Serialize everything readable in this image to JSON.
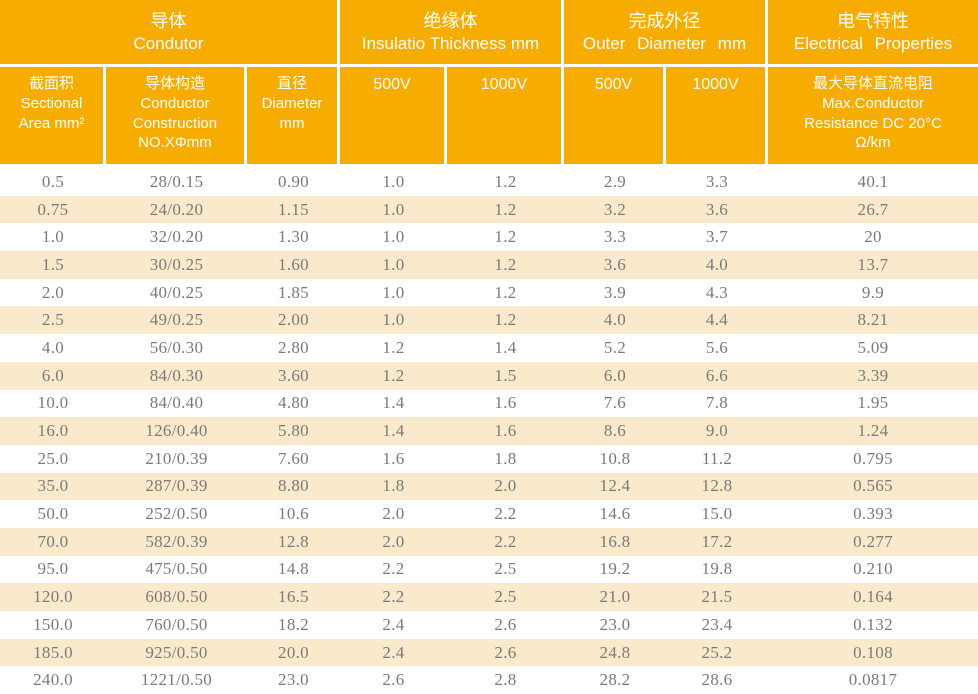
{
  "table": {
    "colors": {
      "header_bg": "#F6AC00",
      "stripe_bg": "#FBE9CB",
      "header_text": "#FFFFFF",
      "data_text": "#7A7A7A"
    },
    "group_headers": [
      {
        "zh": "导体",
        "en": "Condutor"
      },
      {
        "zh": "绝缘体",
        "en": "Insulatio Thickness  mm"
      },
      {
        "zh": "完成外径",
        "en": "Outer  Diameter  mm"
      },
      {
        "zh": "电气特性",
        "en": "Electrical  Properties"
      }
    ],
    "sub_headers": [
      "截面积\nSectional\nArea mm²",
      "导体构造\nConductor\nConstruction\nNO.XΦmm",
      "直径\nDiameter\nmm",
      "500V",
      "1000V",
      "500V",
      "1000V",
      "最大导体直流电阻\nMax.Conductor\nResistance DC 20°C\nΩ/km"
    ],
    "rows": [
      [
        "0.5",
        "28/0.15",
        "0.90",
        "1.0",
        "1.2",
        "2.9",
        "3.3",
        "40.1"
      ],
      [
        "0.75",
        "24/0.20",
        "1.15",
        "1.0",
        "1.2",
        "3.2",
        "3.6",
        "26.7"
      ],
      [
        "1.0",
        "32/0.20",
        "1.30",
        "1.0",
        "1.2",
        "3.3",
        "3.7",
        "20"
      ],
      [
        "1.5",
        "30/0.25",
        "1.60",
        "1.0",
        "1.2",
        "3.6",
        "4.0",
        "13.7"
      ],
      [
        "2.0",
        "40/0.25",
        "1.85",
        "1.0",
        "1.2",
        "3.9",
        "4.3",
        "9.9"
      ],
      [
        "2.5",
        "49/0.25",
        "2.00",
        "1.0",
        "1.2",
        "4.0",
        "4.4",
        "8.21"
      ],
      [
        "4.0",
        "56/0.30",
        "2.80",
        "1.2",
        "1.4",
        "5.2",
        "5.6",
        "5.09"
      ],
      [
        "6.0",
        "84/0.30",
        "3.60",
        "1.2",
        "1.5",
        "6.0",
        "6.6",
        "3.39"
      ],
      [
        "10.0",
        "84/0.40",
        "4.80",
        "1.4",
        "1.6",
        "7.6",
        "7.8",
        "1.95"
      ],
      [
        "16.0",
        "126/0.40",
        "5.80",
        "1.4",
        "1.6",
        "8.6",
        "9.0",
        "1.24"
      ],
      [
        "25.0",
        "210/0.39",
        "7.60",
        "1.6",
        "1.8",
        "10.8",
        "11.2",
        "0.795"
      ],
      [
        "35.0",
        "287/0.39",
        "8.80",
        "1.8",
        "2.0",
        "12.4",
        "12.8",
        "0.565"
      ],
      [
        "50.0",
        "252/0.50",
        "10.6",
        "2.0",
        "2.2",
        "14.6",
        "15.0",
        "0.393"
      ],
      [
        "70.0",
        "582/0.39",
        "12.8",
        "2.0",
        "2.2",
        "16.8",
        "17.2",
        "0.277"
      ],
      [
        "95.0",
        "475/0.50",
        "14.8",
        "2.2",
        "2.5",
        "19.2",
        "19.8",
        "0.210"
      ],
      [
        "120.0",
        "608/0.50",
        "16.5",
        "2.2",
        "2.5",
        "21.0",
        "21.5",
        "0.164"
      ],
      [
        "150.0",
        "760/0.50",
        "18.2",
        "2.4",
        "2.6",
        "23.0",
        "23.4",
        "0.132"
      ],
      [
        "185.0",
        "925/0.50",
        "20.0",
        "2.4",
        "2.6",
        "24.8",
        "25.2",
        "0.108"
      ],
      [
        "240.0",
        "1221/0.50",
        "23.0",
        "2.6",
        "2.8",
        "28.2",
        "28.6",
        "0.0817"
      ]
    ]
  }
}
